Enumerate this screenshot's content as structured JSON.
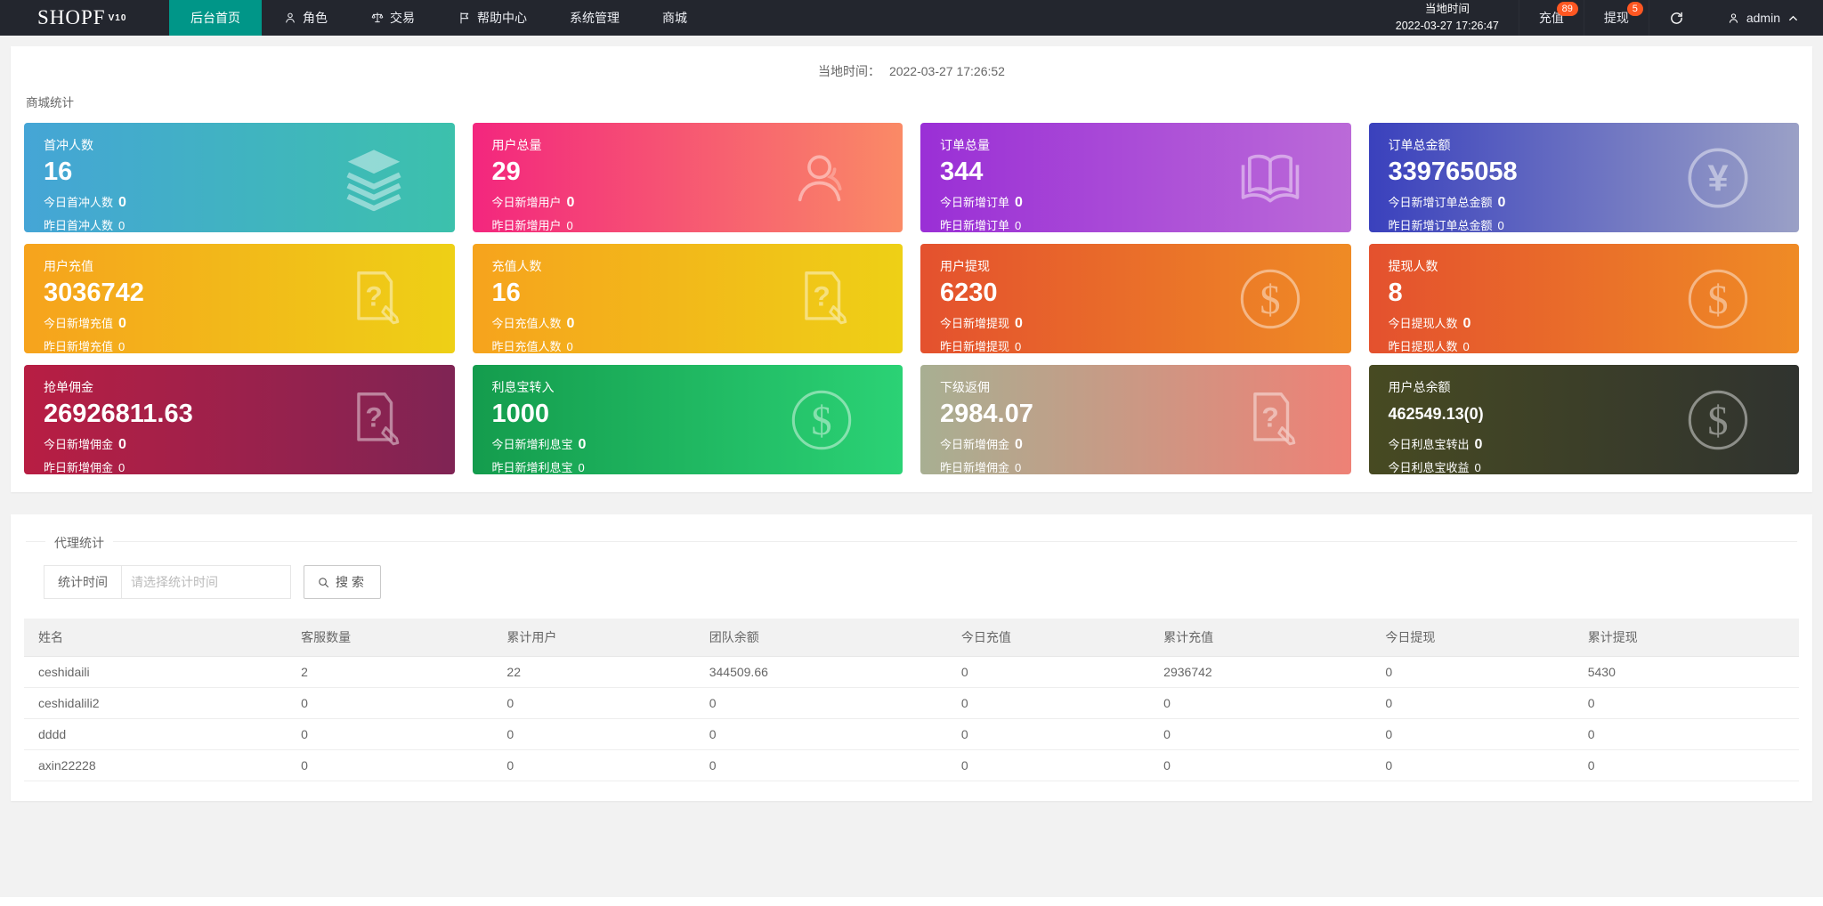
{
  "navbar": {
    "logo": "SHOPF",
    "logo_version": "V10",
    "menu": [
      {
        "label": "后台首页",
        "active": true,
        "icon": null
      },
      {
        "label": "角色",
        "active": false,
        "icon": "user-icon"
      },
      {
        "label": "交易",
        "active": false,
        "icon": "scale-icon"
      },
      {
        "label": "帮助中心",
        "active": false,
        "icon": "flag-icon"
      },
      {
        "label": "系统管理",
        "active": false,
        "icon": null
      },
      {
        "label": "商城",
        "active": false,
        "icon": null
      }
    ],
    "right": {
      "time_label": "当地时间",
      "time_value": "2022-03-27 17:26:47",
      "recharge_label": "充值",
      "recharge_badge": "89",
      "withdraw_label": "提现",
      "withdraw_badge": "5",
      "username": "admin"
    },
    "colors": {
      "bg": "#23262e",
      "active": "#009688",
      "badge": "#ff5722"
    }
  },
  "stats": {
    "section_title": "商城统计",
    "local_time_label": "当地时间：",
    "local_time_value": "2022-03-27 17:26:52",
    "cards": [
      {
        "title": "首冲人数",
        "value": "16",
        "line1_label": "今日首冲人数",
        "line1_value": "0",
        "line2_label": "昨日首冲人数",
        "line2_value": "0",
        "gradient": [
          "#45a5d6",
          "#3cc1ac"
        ],
        "icon": "layers-icon"
      },
      {
        "title": "用户总量",
        "value": "29",
        "line1_label": "今日新增用户",
        "line1_value": "0",
        "line2_label": "昨日新增用户",
        "line2_value": "0",
        "gradient": [
          "#f3267e",
          "#fa8a66"
        ],
        "icon": "user-icon"
      },
      {
        "title": "订单总量",
        "value": "344",
        "line1_label": "今日新增订单",
        "line1_value": "0",
        "line2_label": "昨日新增订单",
        "line2_value": "0",
        "gradient": [
          "#9a2fd6",
          "#bb6ad8"
        ],
        "icon": "book-icon"
      },
      {
        "title": "订单总金额",
        "value": "339765058",
        "line1_label": "今日新增订单总金额",
        "line1_value": "0",
        "line2_label": "昨日新增订单总金额",
        "line2_value": "0",
        "gradient": [
          "#3a41bd",
          "#9aa0c6"
        ],
        "icon": "yen-circle-icon"
      },
      {
        "title": "用户充值",
        "value": "3036742",
        "line1_label": "今日新增充值",
        "line1_value": "0",
        "line2_label": "昨日新增充值",
        "line2_value": "0",
        "gradient": [
          "#f6a31d",
          "#eed016"
        ],
        "icon": "doc-question-icon"
      },
      {
        "title": "充值人数",
        "value": "16",
        "line1_label": "今日充值人数",
        "line1_value": "0",
        "line2_label": "昨日充值人数",
        "line2_value": "0",
        "gradient": [
          "#f6a31d",
          "#eed016"
        ],
        "icon": "doc-question-icon"
      },
      {
        "title": "用户提现",
        "value": "6230",
        "line1_label": "今日新增提现",
        "line1_value": "0",
        "line2_label": "昨日新增提现",
        "line2_value": "0",
        "gradient": [
          "#e4512e",
          "#ef8b25"
        ],
        "icon": "dollar-circle-icon"
      },
      {
        "title": "提现人数",
        "value": "8",
        "line1_label": "今日提现人数",
        "line1_value": "0",
        "line2_label": "昨日提现人数",
        "line2_value": "0",
        "gradient": [
          "#e4512e",
          "#ef8b25"
        ],
        "icon": "dollar-circle-icon"
      },
      {
        "title": "抢单佣金",
        "value": "26926811.63",
        "line1_label": "今日新增佣金",
        "line1_value": "0",
        "line2_label": "昨日新增佣金",
        "line2_value": "0",
        "gradient": [
          "#b81e43",
          "#7f2454"
        ],
        "icon": "doc-question-icon"
      },
      {
        "title": "利息宝转入",
        "value": "1000",
        "line1_label": "今日新增利息宝",
        "line1_value": "0",
        "line2_label": "昨日新增利息宝",
        "line2_value": "0",
        "gradient": [
          "#149c4d",
          "#2bd275"
        ],
        "icon": "dollar-circle-icon"
      },
      {
        "title": "下级返佣",
        "value": "2984.07",
        "line1_label": "今日新增佣金",
        "line1_value": "0",
        "line2_label": "昨日新增佣金",
        "line2_value": "0",
        "gradient": [
          "#a8af92",
          "#ee8176"
        ],
        "icon": "doc-question-icon"
      },
      {
        "title": "用户总余额",
        "value": "462549.13(0)",
        "value_small": true,
        "line1_label": "今日利息宝转出",
        "line1_value": "0",
        "line2_label": "今日利息宝收益",
        "line2_value": "0",
        "gradient": [
          "#474a22",
          "#30332f"
        ],
        "icon": "dollar-circle-icon"
      }
    ]
  },
  "agent": {
    "section_title": "代理统计",
    "form": {
      "label": "统计时间",
      "input_placeholder": "请选择统计时间",
      "search_label": "搜索"
    },
    "table": {
      "columns": [
        "姓名",
        "客服数量",
        "累计用户",
        "团队余额",
        "今日充值",
        "累计充值",
        "今日提现",
        "累计提现"
      ],
      "rows": [
        [
          "ceshidaili",
          "2",
          "22",
          "344509.66",
          "0",
          "2936742",
          "0",
          "5430"
        ],
        [
          "ceshidalili2",
          "0",
          "0",
          "0",
          "0",
          "0",
          "0",
          "0"
        ],
        [
          "dddd",
          "0",
          "0",
          "0",
          "0",
          "0",
          "0",
          "0"
        ],
        [
          "axin22228",
          "0",
          "0",
          "0",
          "0",
          "0",
          "0",
          "0"
        ]
      ]
    }
  }
}
